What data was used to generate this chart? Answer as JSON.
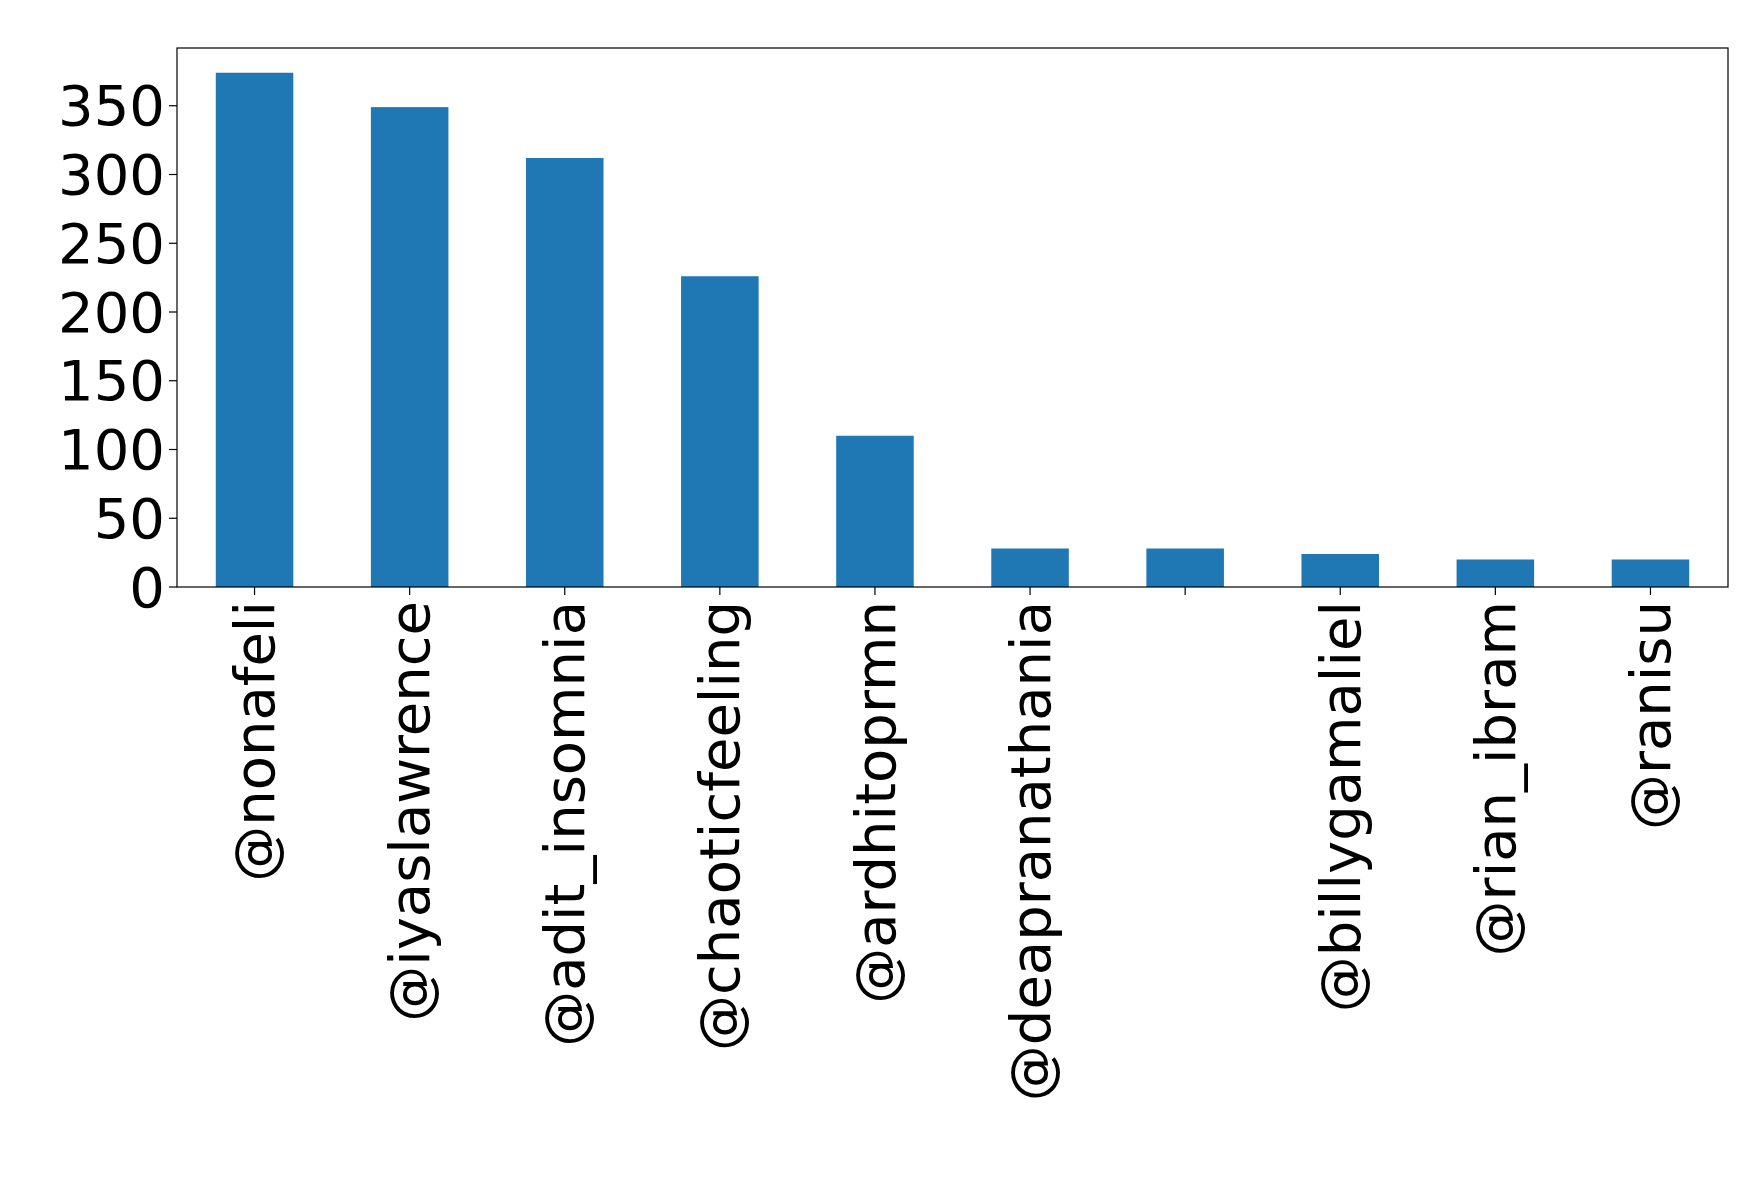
{
  "chart_data": {
    "type": "bar",
    "categories": [
      "@nonafeli",
      "@iyaslawrence",
      "@adit_insomnia",
      "@chaoticfeeling",
      "@ardhitoprmn",
      "@deapranathania",
      null,
      "@billygamaliel",
      "@rian_ibram",
      "@ranisu"
    ],
    "values": [
      374,
      349,
      312,
      226,
      110,
      28,
      28,
      24,
      20,
      20
    ],
    "color": "#1f77b4",
    "ylim": [
      0,
      392
    ],
    "yticks": [
      0,
      50,
      100,
      150,
      200,
      250,
      300,
      350
    ],
    "grid": false
  }
}
